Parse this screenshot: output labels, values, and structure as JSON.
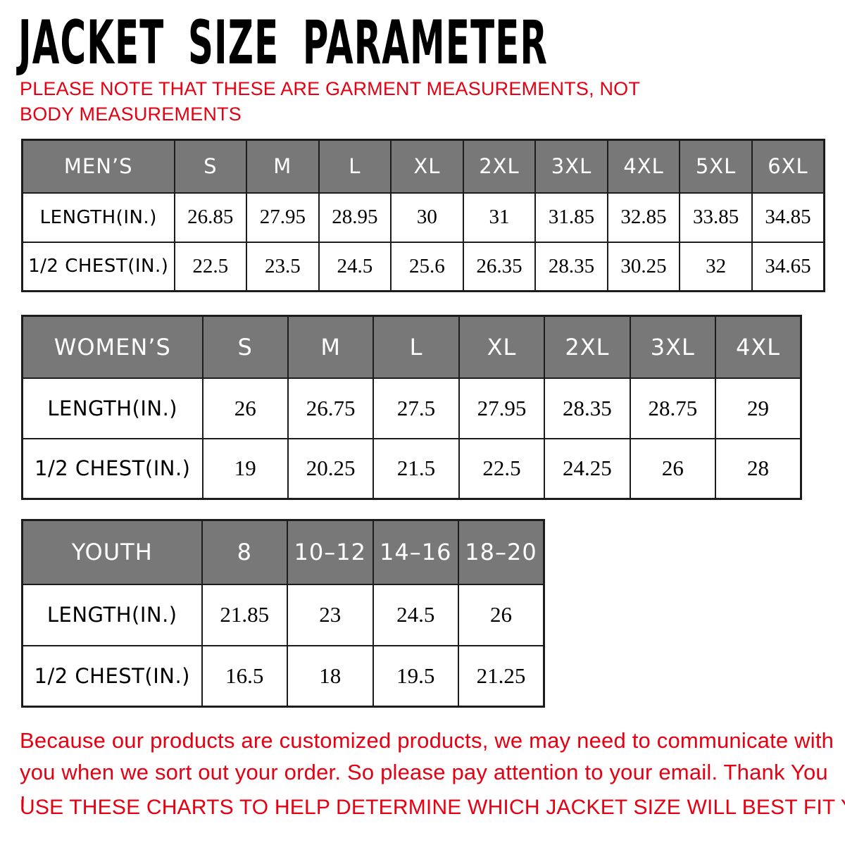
{
  "header": {
    "title": "JACKET SIZE PARAMETER",
    "note": "PLEASE NOTE THAT THESE ARE GARMENT MEASUREMENTS, NOT BODY MEASUREMENTS"
  },
  "colors": {
    "accent_red": "#e60012",
    "header_gray": "#787878",
    "border_dark": "#1c1c1c",
    "title_black": "#000000",
    "background": "#ffffff"
  },
  "tables": [
    {
      "id": "mens",
      "header": [
        "MEN’S",
        "S",
        "M",
        "L",
        "XL",
        "2XL",
        "3XL",
        "4XL",
        "5XL",
        "6XL"
      ],
      "rows": [
        {
          "label": "LENGTH(IN.)",
          "values": [
            "26.85",
            "27.95",
            "28.95",
            "30",
            "31",
            "31.85",
            "32.85",
            "33.85",
            "34.85"
          ]
        },
        {
          "label": "1/2 CHEST(IN.)",
          "values": [
            "22.5",
            "23.5",
            "24.5",
            "25.6",
            "26.35",
            "28.35",
            "30.25",
            "32",
            "34.65"
          ]
        }
      ]
    },
    {
      "id": "womens",
      "header": [
        "WOMEN’S",
        "S",
        "M",
        "L",
        "XL",
        "2XL",
        "3XL",
        "4XL"
      ],
      "rows": [
        {
          "label": "LENGTH(IN.)",
          "values": [
            "26",
            "26.75",
            "27.5",
            "27.95",
            "28.35",
            "28.75",
            "29"
          ]
        },
        {
          "label": "1/2 CHEST(IN.)",
          "values": [
            "19",
            "20.25",
            "21.5",
            "22.5",
            "24.25",
            "26",
            "28"
          ]
        }
      ]
    },
    {
      "id": "youth",
      "header": [
        "YOUTH",
        "8",
        "10–12",
        "14–16",
        "18–20"
      ],
      "rows": [
        {
          "label": "LENGTH(IN.)",
          "values": [
            "21.85",
            "23",
            "24.5",
            "26"
          ]
        },
        {
          "label": "1/2 CHEST(IN.)",
          "values": [
            "16.5",
            "18",
            "19.5",
            "21.25"
          ]
        }
      ]
    }
  ],
  "footer": {
    "paragraph": "Because our products are customized products, we may need to communicate with you when we sort out your order. So please pay attention to your email. Thank You !",
    "advice": "USE THESE CHARTS TO HELP DETERMINE WHICH JACKET SIZE WILL BEST FIT YOU."
  }
}
